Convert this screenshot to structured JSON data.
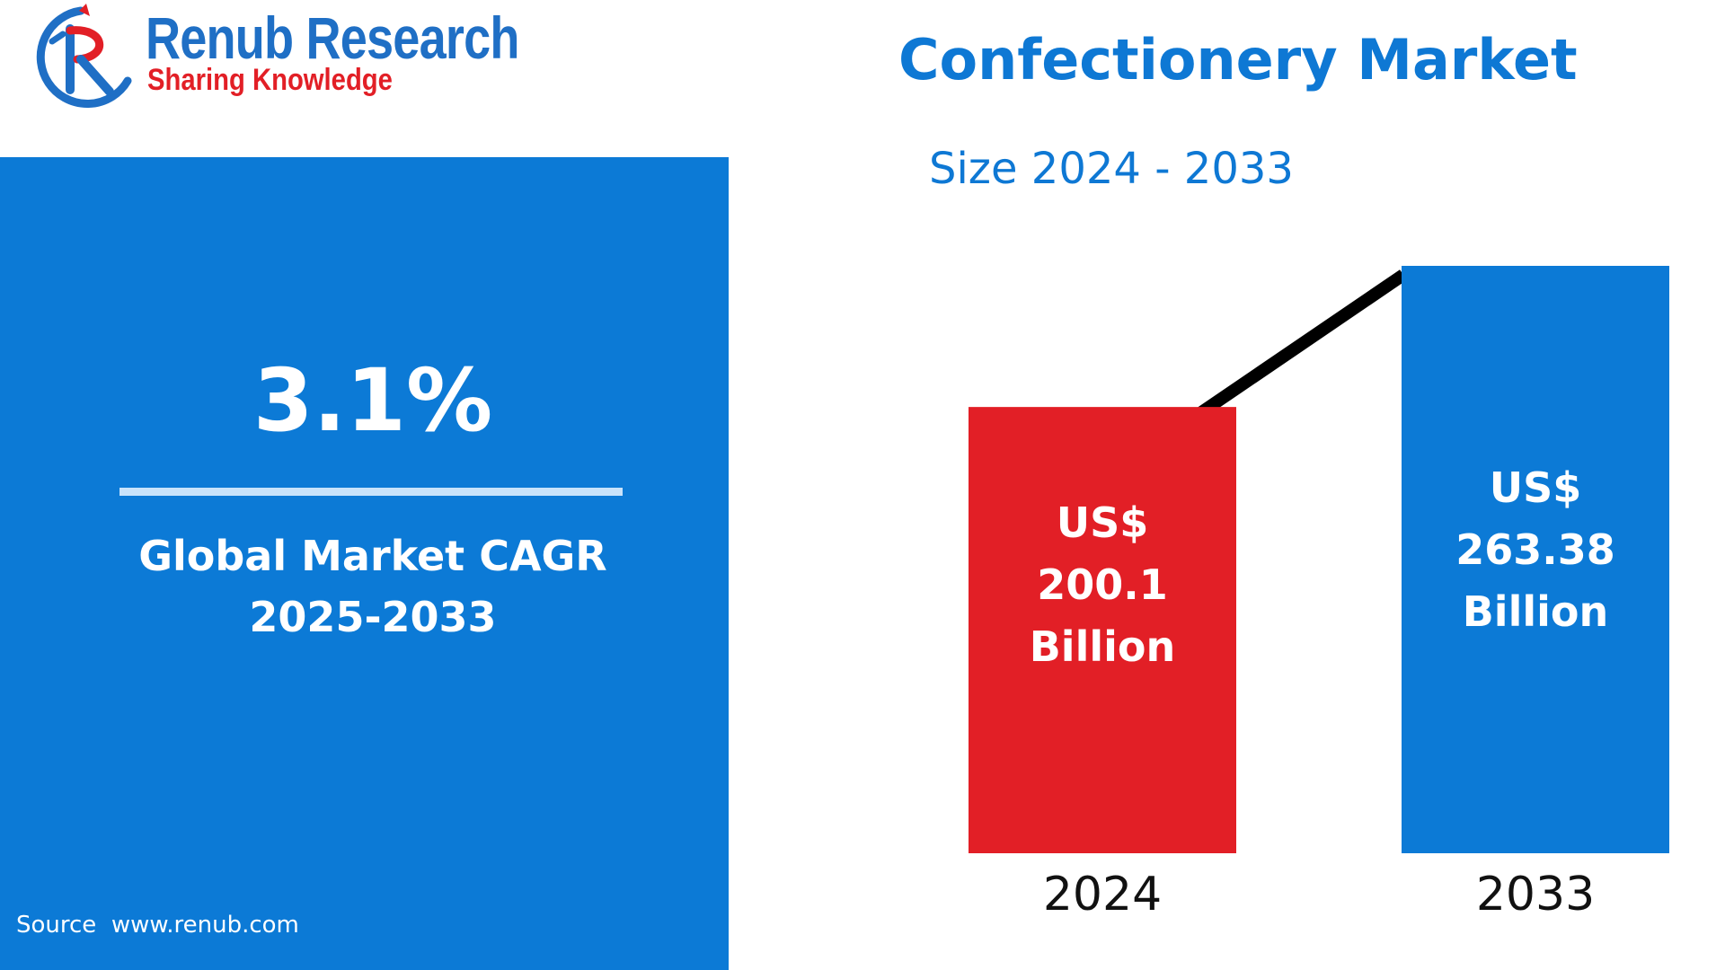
{
  "logo": {
    "name": "Renub Research",
    "tagline": "Sharing Knowledge",
    "colors": {
      "primary": "#1f6fc5",
      "accent": "#e21f26"
    }
  },
  "header": {
    "title": "Confectionery Market",
    "subtitle": "Size 2024 - 2033"
  },
  "left_panel": {
    "cagr_value": "3.1%",
    "cagr_label_line1": "Global Market CAGR",
    "cagr_label_line2": "2025-2033",
    "source": "Source  www.renub.com",
    "background_color": "#0c7ad6"
  },
  "chart_data": {
    "type": "bar",
    "categories": [
      "2024",
      "2033"
    ],
    "values": [
      200.1,
      263.38
    ],
    "unit": "US$ Billion",
    "bar_colors": [
      "#e21f26",
      "#0c7ad6"
    ],
    "data_labels": [
      [
        "US$",
        "200.1",
        "Billion"
      ],
      [
        "US$",
        "263.38",
        "Billion"
      ]
    ],
    "trend_line": true,
    "ylim": [
      0,
      263.38
    ],
    "title": "",
    "xlabel": "",
    "ylabel": ""
  }
}
